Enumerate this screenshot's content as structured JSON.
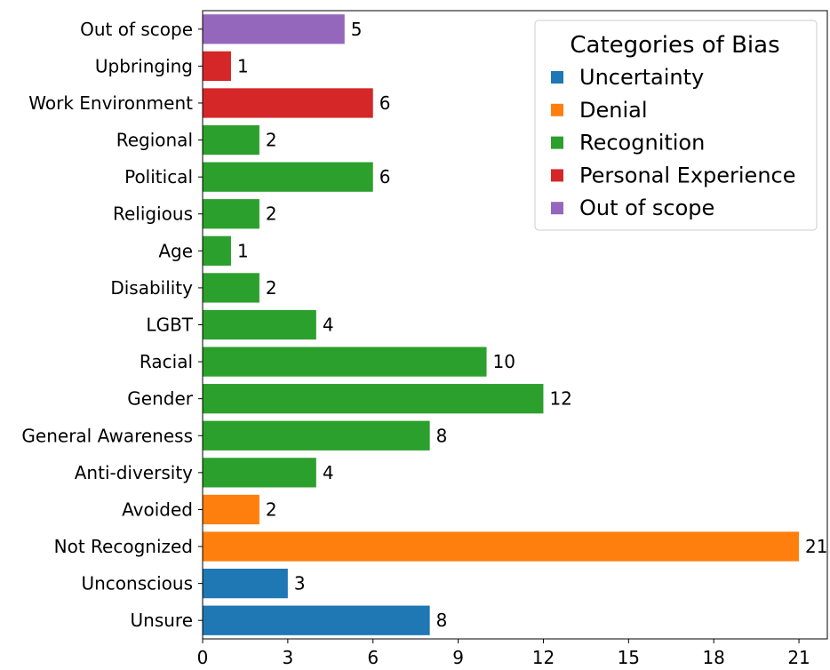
{
  "chart_data": {
    "type": "bar",
    "orientation": "horizontal",
    "title": "",
    "xlabel": "",
    "ylabel": "",
    "xlim": [
      0,
      22
    ],
    "x_ticks": [
      0,
      3,
      6,
      9,
      12,
      15,
      18,
      21
    ],
    "grid": false,
    "legend_position": "top-right",
    "legend_title": "Categories of Bias",
    "legend": [
      {
        "name": "Uncertainty",
        "color": "#1f77b4"
      },
      {
        "name": "Denial",
        "color": "#ff7f0e"
      },
      {
        "name": "Recognition",
        "color": "#2ca02c"
      },
      {
        "name": "Personal Experience",
        "color": "#d62728"
      },
      {
        "name": "Out of scope",
        "color": "#9467bd"
      }
    ],
    "bars": [
      {
        "category": "Out of scope",
        "value": 5,
        "group": "Out of scope"
      },
      {
        "category": "Upbringing",
        "value": 1,
        "group": "Personal Experience"
      },
      {
        "category": "Work Environment",
        "value": 6,
        "group": "Personal Experience"
      },
      {
        "category": "Regional",
        "value": 2,
        "group": "Recognition"
      },
      {
        "category": "Political",
        "value": 6,
        "group": "Recognition"
      },
      {
        "category": "Religious",
        "value": 2,
        "group": "Recognition"
      },
      {
        "category": "Age",
        "value": 1,
        "group": "Recognition"
      },
      {
        "category": "Disability",
        "value": 2,
        "group": "Recognition"
      },
      {
        "category": "LGBT",
        "value": 4,
        "group": "Recognition"
      },
      {
        "category": "Racial",
        "value": 10,
        "group": "Recognition"
      },
      {
        "category": "Gender",
        "value": 12,
        "group": "Recognition"
      },
      {
        "category": "General Awareness",
        "value": 8,
        "group": "Recognition"
      },
      {
        "category": "Anti-diversity",
        "value": 4,
        "group": "Recognition"
      },
      {
        "category": "Avoided",
        "value": 2,
        "group": "Denial"
      },
      {
        "category": "Not Recognized",
        "value": 21,
        "group": "Denial"
      },
      {
        "category": "Unconscious",
        "value": 3,
        "group": "Uncertainty"
      },
      {
        "category": "Unsure",
        "value": 8,
        "group": "Uncertainty"
      }
    ]
  }
}
